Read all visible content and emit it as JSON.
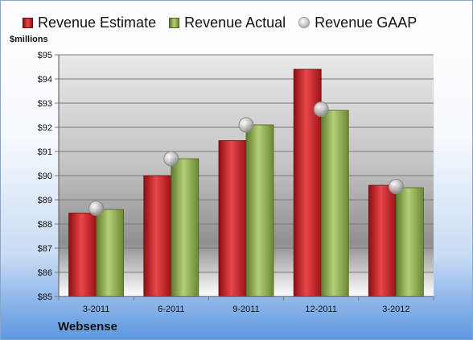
{
  "legend": {
    "estimate": "Revenue Estimate",
    "actual": "Revenue Actual",
    "gaap": "Revenue GAAP"
  },
  "unit_label": "$millions",
  "company": "Websense",
  "colors": {
    "estimate": "#d1252b",
    "actual": "#93b55a",
    "gaap": "#c8c8c8"
  },
  "chart_data": {
    "type": "bar",
    "title": "",
    "xlabel": "",
    "ylabel": "$millions",
    "ylim": [
      85,
      95
    ],
    "yticks": [
      "$85",
      "$86",
      "$87",
      "$88",
      "$89",
      "$90",
      "$91",
      "$92",
      "$93",
      "$94",
      "$95"
    ],
    "grid": true,
    "legend_position": "top",
    "categories": [
      "3-2011",
      "6-2011",
      "9-2011",
      "12-2011",
      "3-2012"
    ],
    "series": [
      {
        "name": "Revenue Estimate",
        "type": "bar",
        "values": [
          88.45,
          90.0,
          91.45,
          94.4,
          89.6
        ]
      },
      {
        "name": "Revenue Actual",
        "type": "bar",
        "values": [
          88.6,
          90.7,
          92.1,
          92.7,
          89.5
        ]
      },
      {
        "name": "Revenue GAAP",
        "type": "scatter",
        "values": [
          88.65,
          90.7,
          92.1,
          92.75,
          89.55
        ]
      }
    ]
  }
}
